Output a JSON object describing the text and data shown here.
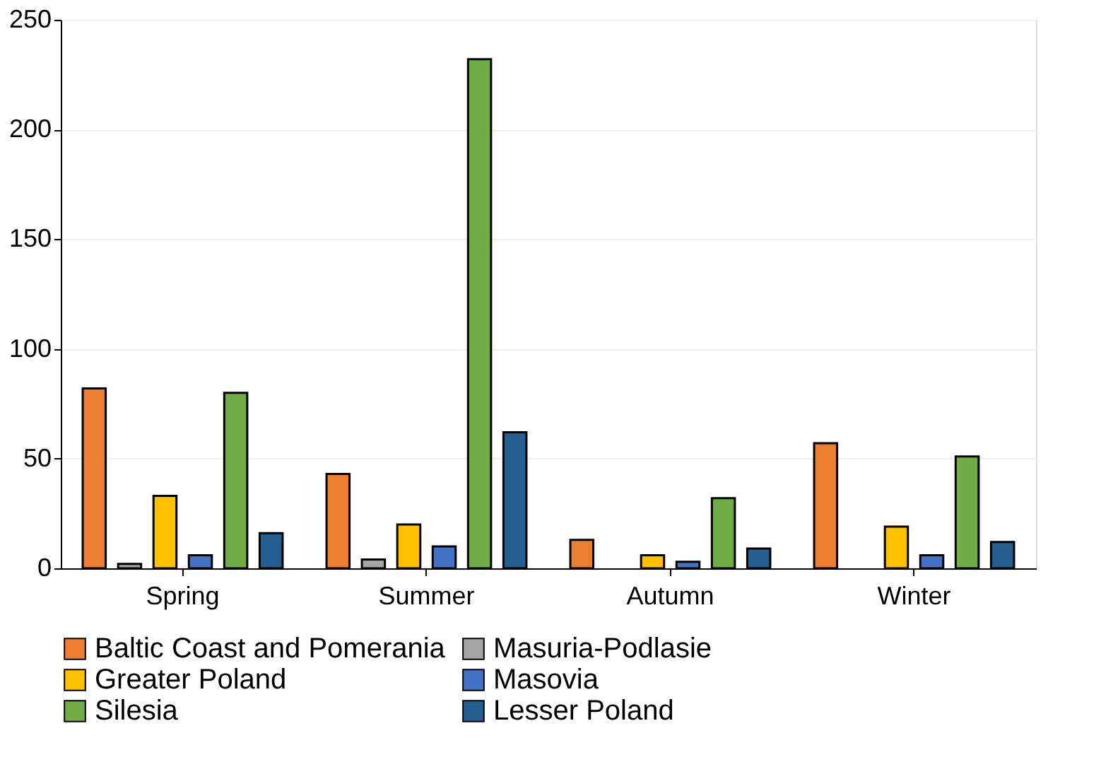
{
  "chart_data": {
    "type": "bar",
    "categories": [
      "Spring",
      "Summer",
      "Autumn",
      "Winter"
    ],
    "series": [
      {
        "name": "Baltic Coast and Pomerania",
        "color": "#ed7d31",
        "values": [
          82,
          43,
          13,
          57
        ]
      },
      {
        "name": "Masuria-Podlasie",
        "color": "#a5a5a5",
        "values": [
          2,
          4,
          null,
          null
        ]
      },
      {
        "name": "Greater Poland",
        "color": "#ffc000",
        "values": [
          33,
          20,
          6,
          19
        ]
      },
      {
        "name": "Masovia",
        "color": "#4472c4",
        "values": [
          6,
          10,
          3,
          6
        ]
      },
      {
        "name": "Silesia",
        "color": "#70ad47",
        "values": [
          80,
          232,
          32,
          51
        ]
      },
      {
        "name": "Lesser Poland",
        "color": "#255e91",
        "values": [
          16,
          62,
          9,
          12
        ]
      }
    ],
    "ylim": [
      0,
      250
    ],
    "yticks": [
      0,
      50,
      100,
      150,
      200,
      250
    ],
    "grid": "y",
    "legend": "bottom"
  }
}
